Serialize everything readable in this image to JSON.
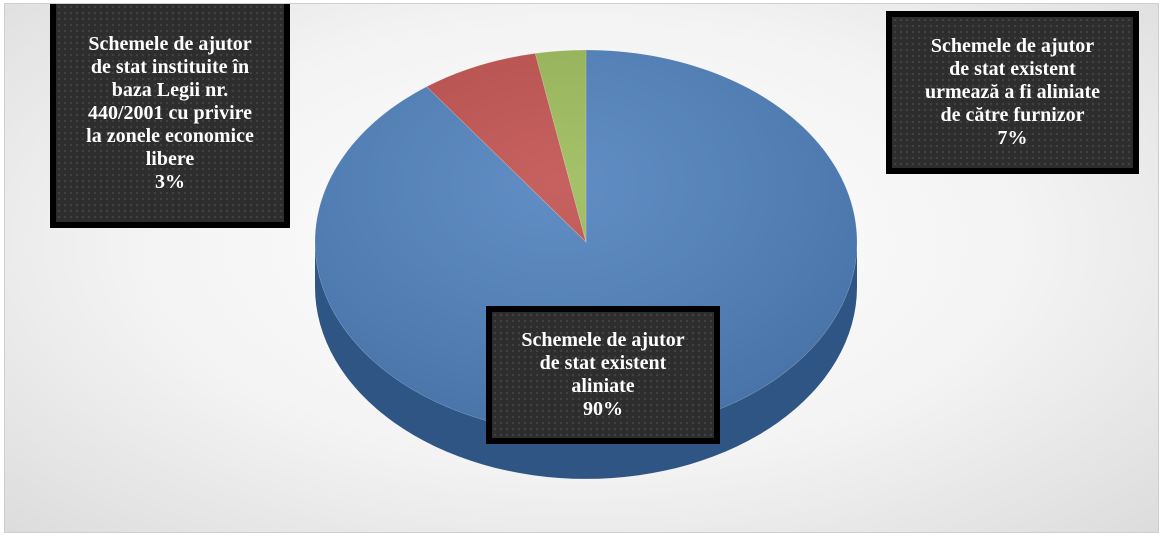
{
  "chart_data": {
    "type": "pie",
    "title": "",
    "categories": [
      "Schemele de ajutor de stat existent aliniate",
      "Schemele de ajutor de stat existent urmează a fi aliniate de către furnizor",
      "Schemele de ajutor de stat instituite în baza Legii nr. 440/2001 cu privire la zonele economice libere"
    ],
    "values": [
      90,
      7,
      3
    ],
    "percent_labels": [
      "90%",
      "7%",
      "3%"
    ],
    "colors": [
      "#4f81bd",
      "#c0504d",
      "#9bbb59"
    ],
    "side_colors": [
      "#2f5584",
      "#8a3432",
      "#6d8a3c"
    ],
    "label_lines": [
      [
        "Schemele de ajutor",
        "de stat existent",
        "aliniate"
      ],
      [
        "Schemele de ajutor",
        "de stat existent",
        "urmează a fi aliniate",
        "de către furnizor"
      ],
      [
        "Schemele de ajutor",
        "de stat instituite în",
        "baza Legii nr.",
        "440/2001 cu privire",
        "la zonele economice",
        "libere"
      ]
    ],
    "legend": "none",
    "style": "3d-pie"
  }
}
